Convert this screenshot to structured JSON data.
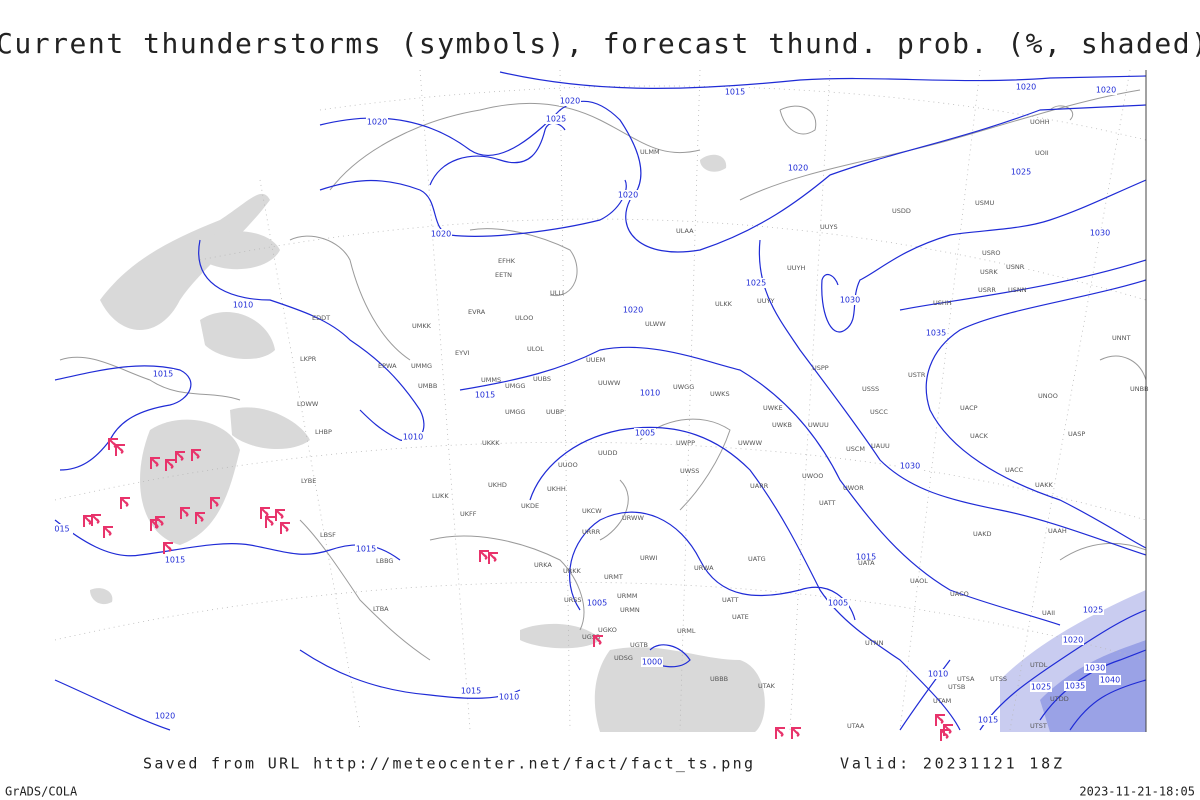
{
  "title": "Current thunderstorms (symbols), forecast thund. prob. (%, shaded)",
  "isobar_labels": [
    "1015",
    "1020",
    "1025",
    "1020",
    "1020",
    "1020",
    "1020",
    "1020",
    "1020",
    "1025",
    "1030",
    "1030",
    "1035",
    "1025",
    "1020",
    "1010",
    "1015",
    "1015",
    "1010",
    "1010",
    "1005",
    "1030",
    "1015",
    "1015",
    "1015",
    "1005",
    "1005",
    "1000",
    "1015",
    "1010",
    "1020",
    "1010",
    "1015",
    "1025",
    "1020",
    "1030",
    "1035",
    "1040",
    "1025",
    "015"
  ],
  "station_codes": [
    "ULMM",
    "ULAA",
    "ULLI",
    "EFHK",
    "EETN",
    "EVRA",
    "ULOO",
    "UMKK",
    "EYVI",
    "ULOL",
    "UUEM",
    "UMMG",
    "UMMS",
    "UMGG",
    "UUBS",
    "EPWA",
    "UMBB",
    "UUWW",
    "UWGG",
    "UWKS",
    "UWKE",
    "UWKB",
    "UWUU",
    "UWWW",
    "UWPP",
    "UMGG",
    "UUBP",
    "UKKK",
    "LKPR",
    "EDDT",
    "LOWW",
    "LHBP",
    "LUKK",
    "UKHH",
    "UKHD",
    "LYBE",
    "LBSF",
    "LBBG",
    "LTBA",
    "UUOO",
    "UUDD",
    "URWW",
    "UKCW",
    "URRR",
    "UKFF",
    "UKDE",
    "URKA",
    "URKK",
    "URMT",
    "URMM",
    "URMN",
    "URSS",
    "UGSB",
    "UGKO",
    "UGTB",
    "UDSG",
    "URML",
    "URWI",
    "URWA",
    "UATG",
    "UATT",
    "UATE",
    "UBBB",
    "UTAK",
    "UARR",
    "UWOO",
    "UWOR",
    "UATT",
    "UWSS",
    "USCM",
    "USCC",
    "USSS",
    "USPP",
    "USTR",
    "UAUU",
    "UACC",
    "UAKK",
    "UAAH",
    "UAKD",
    "UATA",
    "UAOL",
    "UACO",
    "UAII",
    "UTSA",
    "UTSB",
    "UTAM",
    "UTAA",
    "UTNN",
    "UTSS",
    "UTST",
    "UTDD",
    "UTDL",
    "UNNT",
    "UNBB",
    "UNOO",
    "UACP",
    "UACK",
    "UASP",
    "USHH",
    "USRR",
    "USNN",
    "USRK",
    "USRO",
    "USNR",
    "USMU",
    "USDD",
    "UUYS",
    "UUYH",
    "UUYY",
    "ULKK",
    "ULWW",
    "UOII",
    "UOHH"
  ],
  "footer": {
    "source": "Saved from URL http://meteocenter.net/fact/fact_ts.png",
    "valid": "Valid: 20231121 18Z",
    "software": "GrADS/COLA",
    "timestamp": "2023-11-21-18:05"
  }
}
